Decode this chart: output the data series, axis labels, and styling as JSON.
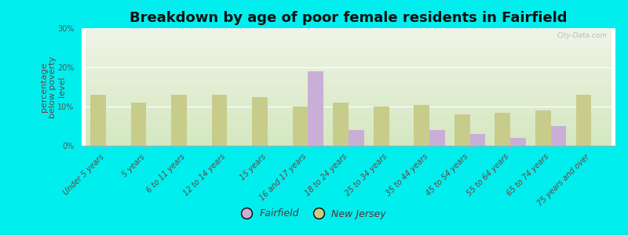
{
  "title": "Breakdown by age of poor female residents in Fairfield",
  "ylabel": "percentage\nbelow poverty\nlevel",
  "background_color": "#00EEEE",
  "plot_bg_top": "#f0f4e8",
  "plot_bg_bottom": "#d4e8c0",
  "categories": [
    "Under 5 years",
    "5 years",
    "6 to 11 years",
    "12 to 14 years",
    "15 years",
    "16 and 17 years",
    "18 to 24 years",
    "25 to 34 years",
    "35 to 44 years",
    "45 to 54 years",
    "55 to 64 years",
    "65 to 74 years",
    "75 years and over"
  ],
  "fairfield_values": [
    0,
    0,
    0,
    0,
    0,
    19.0,
    4.0,
    0,
    4.0,
    3.0,
    2.0,
    5.0,
    0
  ],
  "nj_values": [
    13.0,
    11.0,
    13.0,
    13.0,
    12.5,
    10.0,
    11.0,
    10.0,
    10.5,
    8.0,
    8.5,
    9.0,
    13.0
  ],
  "fairfield_color": "#c9aed8",
  "nj_color": "#c8cc8a",
  "bar_width": 0.38,
  "ylim": [
    0,
    30
  ],
  "yticks": [
    0,
    10,
    20,
    30
  ],
  "ytick_labels": [
    "0%",
    "10%",
    "20%",
    "30%"
  ],
  "legend_labels": [
    "Fairfield",
    "New Jersey"
  ],
  "title_fontsize": 13,
  "axis_label_fontsize": 8,
  "tick_fontsize": 7,
  "legend_fontsize": 9,
  "watermark_text": "City-Data.com"
}
